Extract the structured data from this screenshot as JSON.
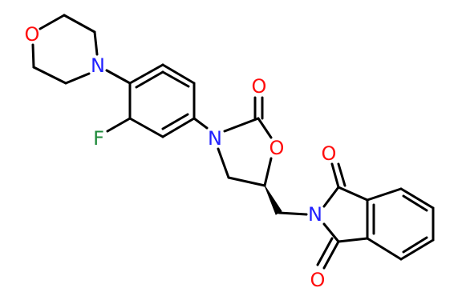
{
  "atoms": [
    {
      "label": "O"
    },
    {
      "label": "N"
    },
    {
      "label": "F"
    },
    {
      "label": "N"
    },
    {
      "label": "O"
    },
    {
      "label": "O"
    },
    {
      "label": "N"
    },
    {
      "label": "O"
    },
    {
      "label": "O"
    }
  ]
}
